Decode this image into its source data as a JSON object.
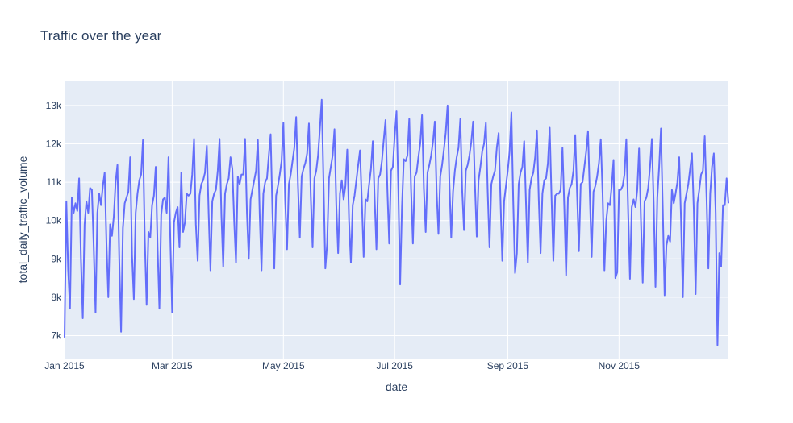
{
  "chart_data": {
    "type": "line",
    "title": "Traffic over the year",
    "xlabel": "date",
    "ylabel": "total_daily_traffic_volume",
    "x_range": [
      "2015-01-01",
      "2015-12-31"
    ],
    "ylim": [
      6400,
      13650
    ],
    "x_ticks": [
      {
        "date": "2015-01-01",
        "label": "Jan 2015"
      },
      {
        "date": "2015-03-01",
        "label": "Mar 2015"
      },
      {
        "date": "2015-05-01",
        "label": "May 2015"
      },
      {
        "date": "2015-07-01",
        "label": "Jul 2015"
      },
      {
        "date": "2015-09-01",
        "label": "Sep 2015"
      },
      {
        "date": "2015-11-01",
        "label": "Nov 2015"
      }
    ],
    "y_ticks": [
      {
        "value": 7000,
        "label": "7k"
      },
      {
        "value": 8000,
        "label": "8k"
      },
      {
        "value": 9000,
        "label": "9k"
      },
      {
        "value": 10000,
        "label": "10k"
      },
      {
        "value": 11000,
        "label": "11k"
      },
      {
        "value": 12000,
        "label": "12k"
      },
      {
        "value": 13000,
        "label": "13k"
      }
    ],
    "grid": true,
    "colors": {
      "line": "#636efa",
      "plot_bg": "#e5ecf6",
      "grid": "#ffffff",
      "text": "#2a3f5f"
    },
    "series": [
      {
        "name": "",
        "start_date": "2015-01-01",
        "values": [
          6950,
          10500,
          8700,
          7700,
          10600,
          10200,
          10450,
          10250,
          11100,
          9000,
          7450,
          9900,
          10500,
          10200,
          10850,
          10800,
          9300,
          7600,
          10200,
          10700,
          10400,
          10900,
          11250,
          9400,
          8000,
          9900,
          9600,
          10100,
          11000,
          11450,
          9000,
          7100,
          9800,
          10450,
          10600,
          10750,
          11650,
          9100,
          7950,
          10200,
          10700,
          11050,
          11200,
          12100,
          9500,
          7800,
          9700,
          9550,
          10400,
          10650,
          11400,
          9300,
          7700,
          10150,
          10550,
          10600,
          10200,
          11650,
          9500,
          7600,
          9950,
          10200,
          10350,
          9300,
          11250,
          9700,
          9950,
          10700,
          10650,
          10700,
          11200,
          12130,
          9900,
          8950,
          10650,
          10950,
          11050,
          11250,
          11950,
          10200,
          8700,
          10500,
          10700,
          10800,
          11300,
          12130,
          10150,
          8800,
          10700,
          10950,
          11100,
          11650,
          11350,
          10000,
          8900,
          11150,
          10950,
          11200,
          11200,
          12130,
          10200,
          9000,
          10550,
          10800,
          11050,
          11300,
          12100,
          10150,
          8700,
          10700,
          11000,
          11100,
          11700,
          12250,
          10200,
          8750,
          10650,
          10900,
          11200,
          11550,
          12550,
          10500,
          9250,
          10950,
          11200,
          11550,
          11900,
          12700,
          10900,
          9550,
          11150,
          11350,
          11500,
          11750,
          12530,
          10650,
          9300,
          11100,
          11300,
          11700,
          12400,
          13150,
          10950,
          8750,
          9400,
          11100,
          11400,
          11700,
          12380,
          10400,
          9150,
          10700,
          11050,
          10550,
          10900,
          11850,
          10000,
          8900,
          10400,
          10650,
          11050,
          11450,
          11830,
          10500,
          9050,
          10550,
          10500,
          10950,
          11350,
          12070,
          10600,
          9250,
          11100,
          11200,
          11550,
          12100,
          12620,
          10800,
          9400,
          11300,
          11400,
          12200,
          12850,
          10850,
          8330,
          10350,
          11600,
          11550,
          11700,
          12650,
          10800,
          9400,
          11150,
          11250,
          11650,
          12000,
          12750,
          10850,
          9700,
          11250,
          11450,
          11700,
          12050,
          12580,
          10750,
          9650,
          11150,
          11450,
          11850,
          12300,
          13000,
          11000,
          9550,
          10750,
          11300,
          11650,
          11900,
          12650,
          10800,
          9750,
          11300,
          11450,
          11700,
          12050,
          12580,
          10950,
          9580,
          11050,
          11400,
          11800,
          12000,
          12550,
          10750,
          9300,
          10950,
          11150,
          11300,
          11900,
          12280,
          10550,
          8950,
          10500,
          10900,
          11300,
          11800,
          12820,
          10500,
          8630,
          9150,
          10950,
          11250,
          11400,
          12070,
          10450,
          8900,
          10800,
          11100,
          11250,
          11650,
          12350,
          10550,
          9150,
          10700,
          11050,
          11100,
          11500,
          12420,
          10600,
          8950,
          10650,
          10700,
          10700,
          10800,
          11900,
          10350,
          8570,
          10600,
          10850,
          10950,
          11300,
          12230,
          10700,
          9200,
          10950,
          11000,
          11400,
          11800,
          12330,
          10650,
          9050,
          10750,
          10900,
          11150,
          11500,
          12120,
          10700,
          8700,
          10000,
          10450,
          10400,
          10900,
          11580,
          8500,
          8650,
          10800,
          10800,
          10900,
          11200,
          12120,
          10250,
          8480,
          10350,
          10550,
          10350,
          10800,
          11880,
          10050,
          8380,
          10500,
          10600,
          10850,
          11400,
          12130,
          10450,
          8270,
          10600,
          11400,
          12400,
          10300,
          8050,
          9350,
          9600,
          9450,
          10800,
          10450,
          10700,
          11000,
          11650,
          10050,
          8000,
          10450,
          10700,
          10950,
          11350,
          11750,
          10300,
          8080,
          10450,
          10800,
          11200,
          11300,
          12200,
          10600,
          8750,
          10700,
          11400,
          11750,
          10200,
          6750,
          9150,
          8800,
          10400,
          10400,
          11100,
          10450
        ]
      }
    ]
  }
}
